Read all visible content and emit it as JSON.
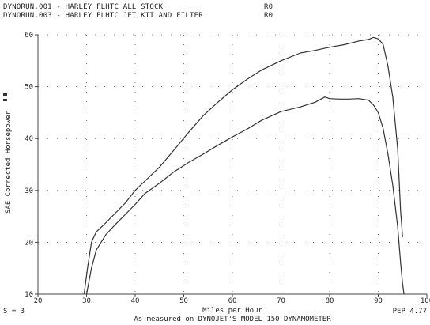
{
  "header": {
    "runs": [
      {
        "name": "DYNORUN.001 - HARLEY FLHTC ALL STOCK",
        "tag": "R0"
      },
      {
        "name": "DYNORUN.003 - HARLEY FLHTC JET KIT AND FILTER",
        "tag": "R0"
      }
    ]
  },
  "footer": {
    "smoothing": "S = 3",
    "pep": "PEP 4.77",
    "credit": "As measured on DYNOJET'S MODEL 150 DYNAMOMETER"
  },
  "colors": {
    "trace": "#333333",
    "grid": "#555555",
    "axis": "#444444"
  },
  "chart_data": {
    "type": "line",
    "xlabel": "Miles per Hour",
    "ylabel": "SAE Corrected Horsepower",
    "xlim": [
      20,
      100
    ],
    "ylim": [
      10,
      60
    ],
    "xticks": [
      20,
      30,
      40,
      50,
      60,
      70,
      80,
      90,
      100
    ],
    "yticks": [
      10,
      20,
      30,
      40,
      50,
      60
    ],
    "grid": true,
    "series": [
      {
        "name": "DYNORUN.003 - HARLEY FLHTC JET KIT AND FILTER",
        "x": [
          29.5,
          30.2,
          31.0,
          32.0,
          34.0,
          36.0,
          38.0,
          40.0,
          42.0,
          45.0,
          48.0,
          51.0,
          54.0,
          57.0,
          60.0,
          63.0,
          66.0,
          70.0,
          74.0,
          77.0,
          80.0,
          83.0,
          86.0,
          88.0,
          89.0,
          90.0,
          91.0,
          92.0,
          93.0,
          94.0,
          94.6,
          95.0
        ],
        "y": [
          10.0,
          15.0,
          20.0,
          22.0,
          23.8,
          25.7,
          27.6,
          30.0,
          31.8,
          34.5,
          37.8,
          41.2,
          44.4,
          47.0,
          49.4,
          51.4,
          53.2,
          55.0,
          56.5,
          57.0,
          57.6,
          58.1,
          58.8,
          59.1,
          59.5,
          59.2,
          58.2,
          54.0,
          48.0,
          38.0,
          26.0,
          21.0
        ]
      },
      {
        "name": "DYNORUN.001 - HARLEY FLHTC ALL STOCK",
        "x": [
          30.0,
          31.0,
          32.0,
          34.0,
          36.0,
          38.0,
          40.0,
          42.0,
          45.0,
          48.0,
          51.0,
          54.0,
          57.0,
          60.0,
          63.0,
          66.0,
          70.0,
          74.0,
          77.0,
          79.0,
          80.0,
          82.0,
          84.0,
          86.0,
          88.0,
          89.0,
          90.0,
          91.0,
          92.0,
          93.0,
          94.0,
          94.6,
          95.0,
          95.3
        ],
        "y": [
          10.0,
          15.0,
          18.5,
          21.5,
          23.5,
          25.4,
          27.3,
          29.4,
          31.4,
          33.6,
          35.4,
          37.0,
          38.7,
          40.3,
          41.8,
          43.5,
          45.2,
          46.1,
          47.0,
          48.0,
          47.7,
          47.6,
          47.6,
          47.7,
          47.4,
          46.5,
          45.0,
          42.0,
          37.0,
          31.0,
          23.0,
          16.0,
          12.0,
          10.0
        ]
      }
    ]
  }
}
